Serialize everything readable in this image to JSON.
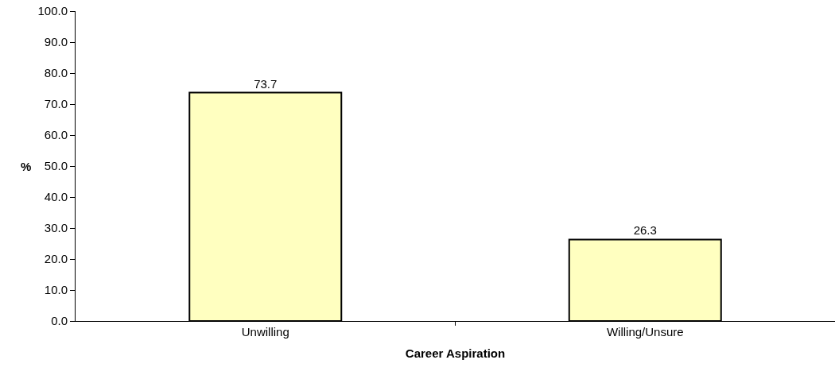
{
  "chart_data": {
    "type": "bar",
    "xlabel": "Career Aspiration",
    "ylabel": "%",
    "categories": [
      "Unwilling",
      "Willing/Unsure"
    ],
    "values": [
      73.7,
      26.3
    ],
    "color": "#ffffc0",
    "data_labels": true,
    "ylim": [
      0,
      100
    ],
    "yticks": [
      {
        "value": 0,
        "label": "0.0"
      },
      {
        "value": 10,
        "label": "10.0"
      },
      {
        "value": 20,
        "label": "20.0"
      },
      {
        "value": 30,
        "label": "30.0"
      },
      {
        "value": 40,
        "label": "40.0"
      },
      {
        "value": 50,
        "label": "50.0"
      },
      {
        "value": 60,
        "label": "60.0"
      },
      {
        "value": 70,
        "label": "70.0"
      },
      {
        "value": 80,
        "label": "80.0"
      },
      {
        "value": 90,
        "label": "90.0"
      },
      {
        "value": 100,
        "label": "100.0"
      }
    ],
    "grid": false,
    "legend": false
  }
}
